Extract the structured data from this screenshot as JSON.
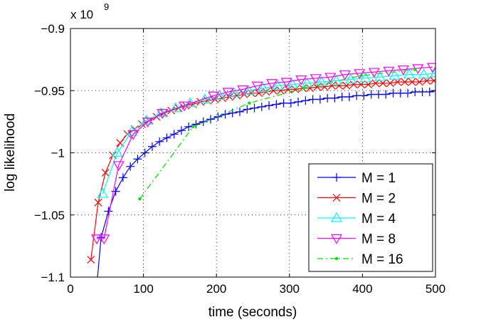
{
  "chart_data": {
    "type": "line",
    "title": "",
    "xlabel": "time (seconds)",
    "ylabel": "log likelihood",
    "y_multiplier_label": {
      "base": "x 10",
      "exp": "9"
    },
    "xlim": [
      0,
      500
    ],
    "ylim": [
      -1.1,
      -0.9
    ],
    "xticks": [
      0,
      100,
      200,
      300,
      400,
      500
    ],
    "xtick_labels": [
      "0",
      "100",
      "200",
      "300",
      "400",
      "500"
    ],
    "yticks": [
      -1.1,
      -1.05,
      -1.0,
      -0.95,
      -0.9
    ],
    "ytick_labels": [
      "−1.1",
      "−1.05",
      "−1",
      "−0.95",
      "−0.9"
    ],
    "grid": true,
    "legend_position": "bottom-right",
    "series": [
      {
        "name": "M = 1",
        "color": "#0000ff",
        "marker": "plus",
        "dash": "solid",
        "points": [
          [
            34,
            -1.12
          ],
          [
            42,
            -1.068
          ],
          [
            52,
            -1.047
          ],
          [
            62,
            -1.031
          ],
          [
            72,
            -1.02
          ],
          [
            82,
            -1.011
          ],
          [
            92,
            -1.005
          ],
          [
            102,
            -1.0
          ],
          [
            112,
            -0.995
          ],
          [
            122,
            -0.991
          ],
          [
            132,
            -0.988
          ],
          [
            142,
            -0.985
          ],
          [
            152,
            -0.982
          ],
          [
            162,
            -0.979
          ],
          [
            172,
            -0.977
          ],
          [
            182,
            -0.975
          ],
          [
            192,
            -0.973
          ],
          [
            202,
            -0.971
          ],
          [
            212,
            -0.969
          ],
          [
            222,
            -0.968
          ],
          [
            232,
            -0.967
          ],
          [
            242,
            -0.965
          ],
          [
            252,
            -0.964
          ],
          [
            262,
            -0.963
          ],
          [
            272,
            -0.962
          ],
          [
            282,
            -0.961
          ],
          [
            292,
            -0.96
          ],
          [
            302,
            -0.96
          ],
          [
            312,
            -0.959
          ],
          [
            322,
            -0.958
          ],
          [
            332,
            -0.957
          ],
          [
            342,
            -0.957
          ],
          [
            352,
            -0.956
          ],
          [
            362,
            -0.956
          ],
          [
            372,
            -0.955
          ],
          [
            382,
            -0.955
          ],
          [
            392,
            -0.954
          ],
          [
            402,
            -0.954
          ],
          [
            412,
            -0.953
          ],
          [
            422,
            -0.953
          ],
          [
            432,
            -0.953
          ],
          [
            442,
            -0.952
          ],
          [
            452,
            -0.952
          ],
          [
            462,
            -0.952
          ],
          [
            472,
            -0.951
          ],
          [
            482,
            -0.951
          ],
          [
            492,
            -0.951
          ],
          [
            500,
            -0.95
          ]
        ]
      },
      {
        "name": "M = 2",
        "color": "#ff0000",
        "marker": "x",
        "dash": "solid",
        "points": [
          [
            28,
            -1.086
          ],
          [
            38,
            -1.04
          ],
          [
            48,
            -1.016
          ],
          [
            58,
            -1.002
          ],
          [
            68,
            -0.992
          ],
          [
            78,
            -0.985
          ],
          [
            88,
            -0.981
          ],
          [
            98,
            -0.977
          ],
          [
            108,
            -0.974
          ],
          [
            118,
            -0.971
          ],
          [
            128,
            -0.968
          ],
          [
            138,
            -0.966
          ],
          [
            148,
            -0.964
          ],
          [
            158,
            -0.962
          ],
          [
            168,
            -0.961
          ],
          [
            178,
            -0.959
          ],
          [
            188,
            -0.958
          ],
          [
            198,
            -0.957
          ],
          [
            208,
            -0.956
          ],
          [
            218,
            -0.955
          ],
          [
            228,
            -0.954
          ],
          [
            238,
            -0.953
          ],
          [
            248,
            -0.952
          ],
          [
            258,
            -0.952
          ],
          [
            268,
            -0.951
          ],
          [
            278,
            -0.95
          ],
          [
            288,
            -0.95
          ],
          [
            298,
            -0.949
          ],
          [
            308,
            -0.949
          ],
          [
            318,
            -0.948
          ],
          [
            328,
            -0.948
          ],
          [
            338,
            -0.947
          ],
          [
            348,
            -0.947
          ],
          [
            358,
            -0.946
          ],
          [
            368,
            -0.946
          ],
          [
            378,
            -0.946
          ],
          [
            388,
            -0.945
          ],
          [
            398,
            -0.945
          ],
          [
            408,
            -0.945
          ],
          [
            418,
            -0.944
          ],
          [
            428,
            -0.944
          ],
          [
            438,
            -0.944
          ],
          [
            448,
            -0.943
          ],
          [
            458,
            -0.943
          ],
          [
            468,
            -0.943
          ],
          [
            478,
            -0.943
          ],
          [
            488,
            -0.942
          ],
          [
            498,
            -0.942
          ]
        ]
      },
      {
        "name": "M = 4",
        "color": "#00ffff",
        "marker": "triangle-up",
        "dash": "solid",
        "points": [
          [
            44,
            -1.033
          ],
          [
            64,
            -1.0
          ],
          [
            84,
            -0.983
          ],
          [
            104,
            -0.974
          ],
          [
            124,
            -0.968
          ],
          [
            144,
            -0.964
          ],
          [
            164,
            -0.96
          ],
          [
            184,
            -0.957
          ],
          [
            204,
            -0.954
          ],
          [
            224,
            -0.952
          ],
          [
            244,
            -0.95
          ],
          [
            264,
            -0.948
          ],
          [
            284,
            -0.946
          ],
          [
            304,
            -0.945
          ],
          [
            324,
            -0.944
          ],
          [
            344,
            -0.943
          ],
          [
            364,
            -0.942
          ],
          [
            384,
            -0.941
          ],
          [
            404,
            -0.94
          ],
          [
            424,
            -0.939
          ],
          [
            444,
            -0.938
          ],
          [
            464,
            -0.937
          ],
          [
            484,
            -0.937
          ],
          [
            500,
            -0.936
          ]
        ]
      },
      {
        "name": "M = 8",
        "color": "#ff00ff",
        "marker": "triangle-down",
        "dash": "solid",
        "points": [
          [
            36,
            -1.069
          ],
          [
            46,
            -1.069
          ],
          [
            66,
            -1.01
          ],
          [
            86,
            -0.985
          ],
          [
            106,
            -0.975
          ],
          [
            126,
            -0.968
          ],
          [
            156,
            -0.962
          ],
          [
            196,
            -0.954
          ],
          [
            216,
            -0.951
          ],
          [
            236,
            -0.949
          ],
          [
            256,
            -0.946
          ],
          [
            276,
            -0.944
          ],
          [
            296,
            -0.943
          ],
          [
            316,
            -0.941
          ],
          [
            336,
            -0.94
          ],
          [
            356,
            -0.939
          ],
          [
            376,
            -0.937
          ],
          [
            396,
            -0.936
          ],
          [
            416,
            -0.935
          ],
          [
            436,
            -0.934
          ],
          [
            456,
            -0.933
          ],
          [
            476,
            -0.932
          ],
          [
            496,
            -0.931
          ]
        ]
      },
      {
        "name": "M = 16",
        "color": "#00dd00",
        "marker": "dot",
        "dash": "dashdot",
        "points": [
          [
            95,
            -1.037
          ],
          [
            168,
            -0.979
          ],
          [
            245,
            -0.96
          ],
          [
            320,
            -0.948
          ],
          [
            398,
            -0.938
          ],
          [
            472,
            -0.933
          ]
        ]
      }
    ]
  }
}
